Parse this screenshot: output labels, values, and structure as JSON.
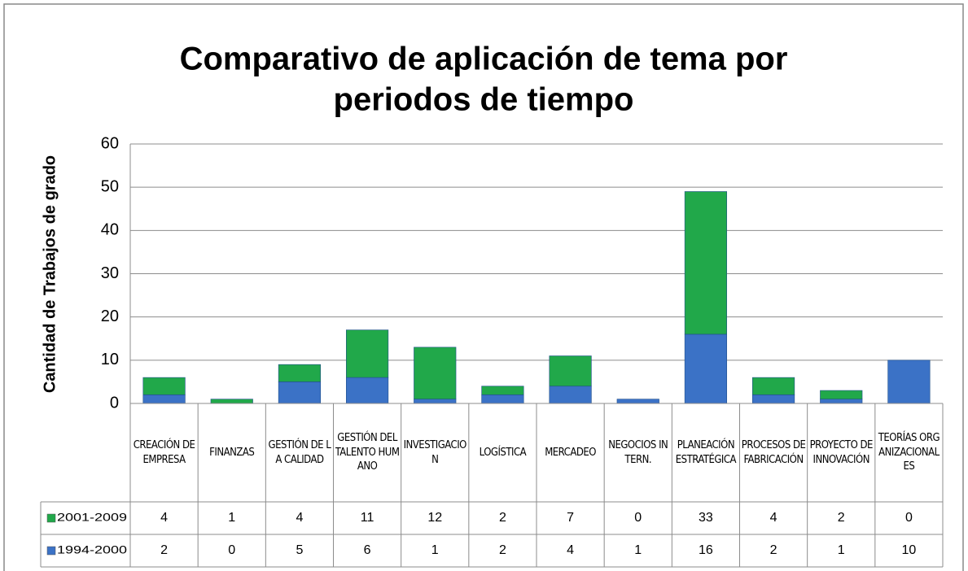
{
  "chart_data": {
    "type": "bar",
    "stacked": true,
    "title": "Comparativo de aplicación de tema por periodos de tiempo",
    "y_label": "Cantidad de Trabajos de grado",
    "categories": [
      "CREACIÓN DE EMPRESA",
      "FINANZAS",
      "GESTIÓN DE LA CALIDAD",
      "GESTIÓN DEL TALENTO HUMANO",
      "INVESTIGACION",
      "LOGÍSTICA",
      "MERCADEO",
      "NEGOCIOS INTERN.",
      "PLANEACIÓN ESTRATÉGICA",
      "PROCESOS DE FABRICACIÓN",
      "PROYECTO DE INNOVACIÓN",
      "TEORÍAS ORGANIZACIONALES"
    ],
    "series": [
      {
        "name": "2001-2009",
        "color": "#21a84a",
        "values": [
          4,
          1,
          4,
          11,
          12,
          2,
          7,
          0,
          33,
          4,
          2,
          0
        ]
      },
      {
        "name": "1994-2000",
        "color": "#3b72c6",
        "values": [
          2,
          0,
          5,
          6,
          1,
          2,
          4,
          1,
          16,
          2,
          1,
          10
        ]
      }
    ],
    "ylim": [
      0,
      60
    ],
    "yticks": [
      0,
      10,
      20,
      30,
      40,
      50,
      60
    ],
    "grid": true,
    "data_table": true
  }
}
